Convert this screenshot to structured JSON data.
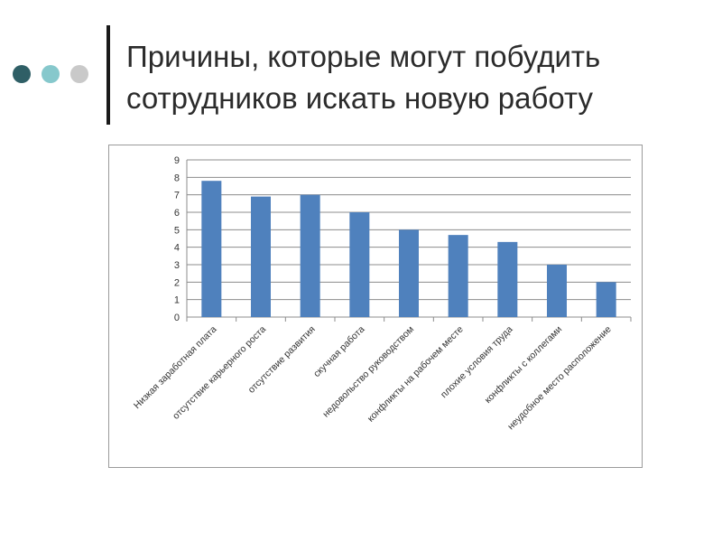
{
  "slide": {
    "title_lines": [
      "Причины, которые могут побудить",
      "сотрудников искать новую работу"
    ]
  },
  "decor": {
    "dot_colors": [
      "#2f5f66",
      "#86c8cc",
      "#c9c9c9"
    ],
    "bar_color": "#4f81bd"
  },
  "chart_data": {
    "type": "bar",
    "title": "",
    "xlabel": "",
    "ylabel": "",
    "ylim": [
      0,
      9
    ],
    "yticks": [
      0,
      1,
      2,
      3,
      4,
      5,
      6,
      7,
      8,
      9
    ],
    "grid": true,
    "legend": "none",
    "categories": [
      "Низкая заработная плата",
      "отсутствие карьерного роста",
      "отсутствие развития",
      "скучная работа",
      "недовольство руководством",
      "конфликты на рабочем месте",
      "плохие условия труда",
      "конфликты с коллегами",
      "неудобное место расположение"
    ],
    "values": [
      7.8,
      6.9,
      7.0,
      6.0,
      5.0,
      4.7,
      4.3,
      3.0,
      2.0
    ]
  }
}
